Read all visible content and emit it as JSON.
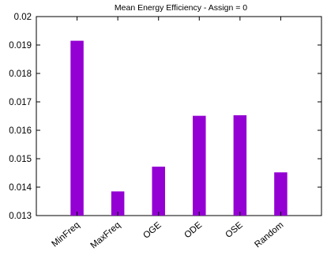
{
  "chart_data": {
    "type": "bar",
    "title": "Mean Energy Efficiency - Assign = 0",
    "xlabel": "",
    "ylabel": "",
    "categories": [
      "MinFreq",
      "MaxFreq",
      "OGE",
      "ODE",
      "OSE",
      "Random"
    ],
    "values": [
      0.01915,
      0.01385,
      0.01472,
      0.01651,
      0.01653,
      0.01452
    ],
    "ylim": [
      0.013,
      0.02
    ],
    "y_ticks": [
      "0.013",
      "0.014",
      "0.015",
      "0.016",
      "0.017",
      "0.018",
      "0.019",
      "0.02"
    ],
    "bar_color": "#9400d3",
    "grid": false,
    "legend": "none"
  }
}
